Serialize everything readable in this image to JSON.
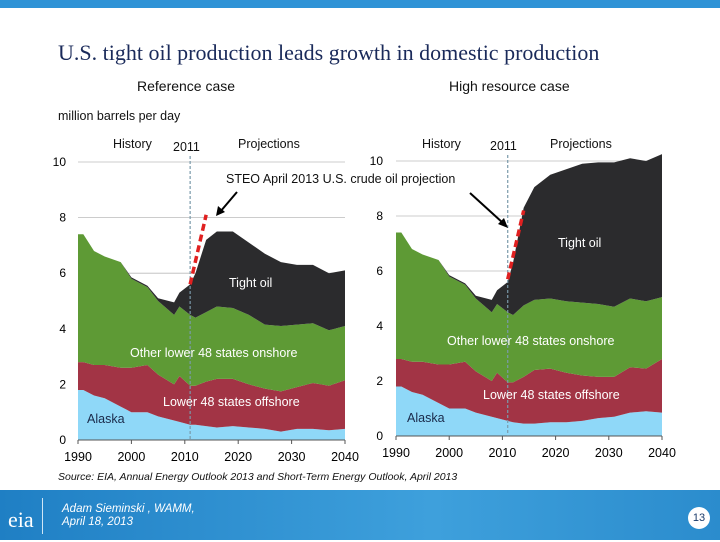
{
  "title": "U.S. tight oil production leads growth in domestic production",
  "unit_label": "million barrels per day",
  "source": "Source:  EIA, Annual Energy Outlook 2013 and Short-Term Energy Outlook, April 2013",
  "footer": {
    "author": "Adam Sieminski , WAMM,",
    "date": "April 18, 2013",
    "page": "13",
    "logo_text": "eia"
  },
  "annotation": "STEO April 2013 U.S. crude oil projection",
  "colors": {
    "Alaska": "#8fd8f8",
    "Lower 48 states offshore": "#a23445",
    "Other lower 48 states onshore": "#5e9a35",
    "Tight oil": "#2b2b2d",
    "steo": "#e02020",
    "accent": "#2f93d6"
  },
  "chart_data": [
    {
      "type": "area",
      "stacked": true,
      "title": "Reference case",
      "history_label": "History",
      "divider_label": "2011",
      "projection_label": "Projections",
      "ylim": [
        0,
        10
      ],
      "yticks": [
        "0",
        "2",
        "4",
        "6",
        "8",
        "10"
      ],
      "xticks": [
        "1990",
        "2000",
        "2010",
        "2020",
        "2030",
        "2040"
      ],
      "xlim": [
        1990,
        2040
      ],
      "grid": true,
      "x": [
        1990,
        1991,
        1993,
        1995,
        1998,
        2000,
        2003,
        2005,
        2008,
        2009,
        2011,
        2012,
        2014,
        2016,
        2019,
        2022,
        2025,
        2028,
        2031,
        2034,
        2037,
        2040
      ],
      "series": [
        {
          "name": "Alaska",
          "values": [
            1.8,
            1.8,
            1.6,
            1.5,
            1.2,
            1.0,
            1.0,
            0.85,
            0.7,
            0.65,
            0.55,
            0.55,
            0.5,
            0.45,
            0.5,
            0.45,
            0.4,
            0.3,
            0.4,
            0.4,
            0.35,
            0.4
          ]
        },
        {
          "name": "Lower 48 states offshore",
          "values": [
            1.0,
            1.0,
            1.1,
            1.2,
            1.4,
            1.6,
            1.7,
            1.5,
            1.3,
            1.65,
            1.4,
            1.4,
            1.6,
            1.75,
            1.7,
            1.55,
            1.45,
            1.45,
            1.5,
            1.65,
            1.6,
            1.75
          ]
        },
        {
          "name": "Other lower 48 states onshore",
          "values": [
            4.6,
            4.6,
            4.1,
            3.9,
            3.8,
            3.2,
            2.8,
            2.65,
            2.5,
            2.5,
            2.55,
            2.45,
            2.5,
            2.6,
            2.55,
            2.5,
            2.3,
            2.35,
            2.25,
            2.15,
            2.0,
            1.95
          ]
        },
        {
          "name": "Tight oil",
          "values": [
            0,
            0,
            0,
            0,
            0,
            0.05,
            0.05,
            0.1,
            0.45,
            0.5,
            1.1,
            1.6,
            2.6,
            2.7,
            2.75,
            2.6,
            2.55,
            2.3,
            2.15,
            2.1,
            2.05,
            2.0
          ]
        }
      ],
      "steo": {
        "x": [
          2011,
          2014
        ],
        "y": [
          5.6,
          8.1
        ]
      }
    },
    {
      "type": "area",
      "stacked": true,
      "title": "High resource case",
      "history_label": "History",
      "divider_label": "2011",
      "projection_label": "Projections",
      "ylim": [
        0,
        10
      ],
      "yticks": [
        "0",
        "2",
        "4",
        "6",
        "8",
        "10"
      ],
      "xticks": [
        "1990",
        "2000",
        "2010",
        "2020",
        "2030",
        "2040"
      ],
      "xlim": [
        1990,
        2040
      ],
      "grid": true,
      "x": [
        1990,
        1991,
        1993,
        1995,
        1998,
        2000,
        2003,
        2005,
        2008,
        2009,
        2011,
        2012,
        2014,
        2016,
        2019,
        2022,
        2025,
        2028,
        2031,
        2034,
        2037,
        2040
      ],
      "series": [
        {
          "name": "Alaska",
          "values": [
            1.8,
            1.8,
            1.6,
            1.5,
            1.2,
            1.0,
            1.0,
            0.85,
            0.7,
            0.65,
            0.55,
            0.5,
            0.45,
            0.45,
            0.5,
            0.5,
            0.55,
            0.65,
            0.7,
            0.85,
            0.9,
            0.85
          ]
        },
        {
          "name": "Lower 48 states offshore",
          "values": [
            1.0,
            1.0,
            1.1,
            1.2,
            1.4,
            1.6,
            1.7,
            1.5,
            1.3,
            1.65,
            1.4,
            1.45,
            1.7,
            1.95,
            1.95,
            1.8,
            1.65,
            1.5,
            1.45,
            1.65,
            1.55,
            1.95
          ]
        },
        {
          "name": "Other lower 48 states onshore",
          "values": [
            4.6,
            4.6,
            4.1,
            3.9,
            3.8,
            3.2,
            2.8,
            2.65,
            2.5,
            2.5,
            2.55,
            2.45,
            2.6,
            2.55,
            2.55,
            2.6,
            2.65,
            2.65,
            2.55,
            2.5,
            2.45,
            2.25
          ]
        },
        {
          "name": "Tight oil",
          "values": [
            0,
            0,
            0,
            0,
            0,
            0.05,
            0.05,
            0.1,
            0.45,
            0.5,
            1.1,
            1.9,
            3.55,
            4.1,
            4.5,
            4.8,
            5.05,
            5.15,
            5.25,
            5.1,
            5.1,
            5.2
          ]
        }
      ],
      "steo": {
        "x": [
          2011,
          2014
        ],
        "y": [
          5.7,
          8.2
        ]
      }
    }
  ]
}
